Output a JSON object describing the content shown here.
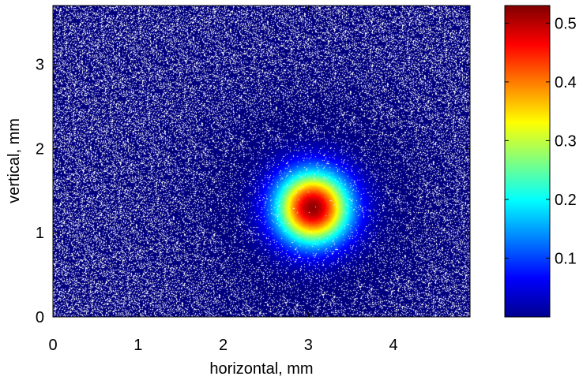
{
  "chart_data": {
    "type": "heatmap",
    "title": "",
    "xlabel": "horizontal, mm",
    "ylabel": "vertical, mm",
    "xlim": [
      0,
      4.9
    ],
    "ylim": [
      0,
      3.7
    ],
    "xticks": [
      0,
      1,
      2,
      3,
      4
    ],
    "yticks": [
      0,
      1,
      2,
      3
    ],
    "colorbar": {
      "colormap": "jet",
      "range": [
        0,
        0.53
      ],
      "ticks": [
        0.1,
        0.2,
        0.3,
        0.4,
        0.5
      ],
      "tick_labels": [
        "0.1",
        "0.2",
        "0.3",
        "0.4",
        "0.5"
      ]
    },
    "spot": {
      "center_x": 3.05,
      "center_y": 1.3,
      "sigma_x": 0.3,
      "sigma_y": 0.3,
      "peak": 0.52
    },
    "background": {
      "level": 0.0,
      "noise": "white speckle",
      "colors": {
        "noise": "#ffffff",
        "low": "#00008f"
      }
    }
  }
}
